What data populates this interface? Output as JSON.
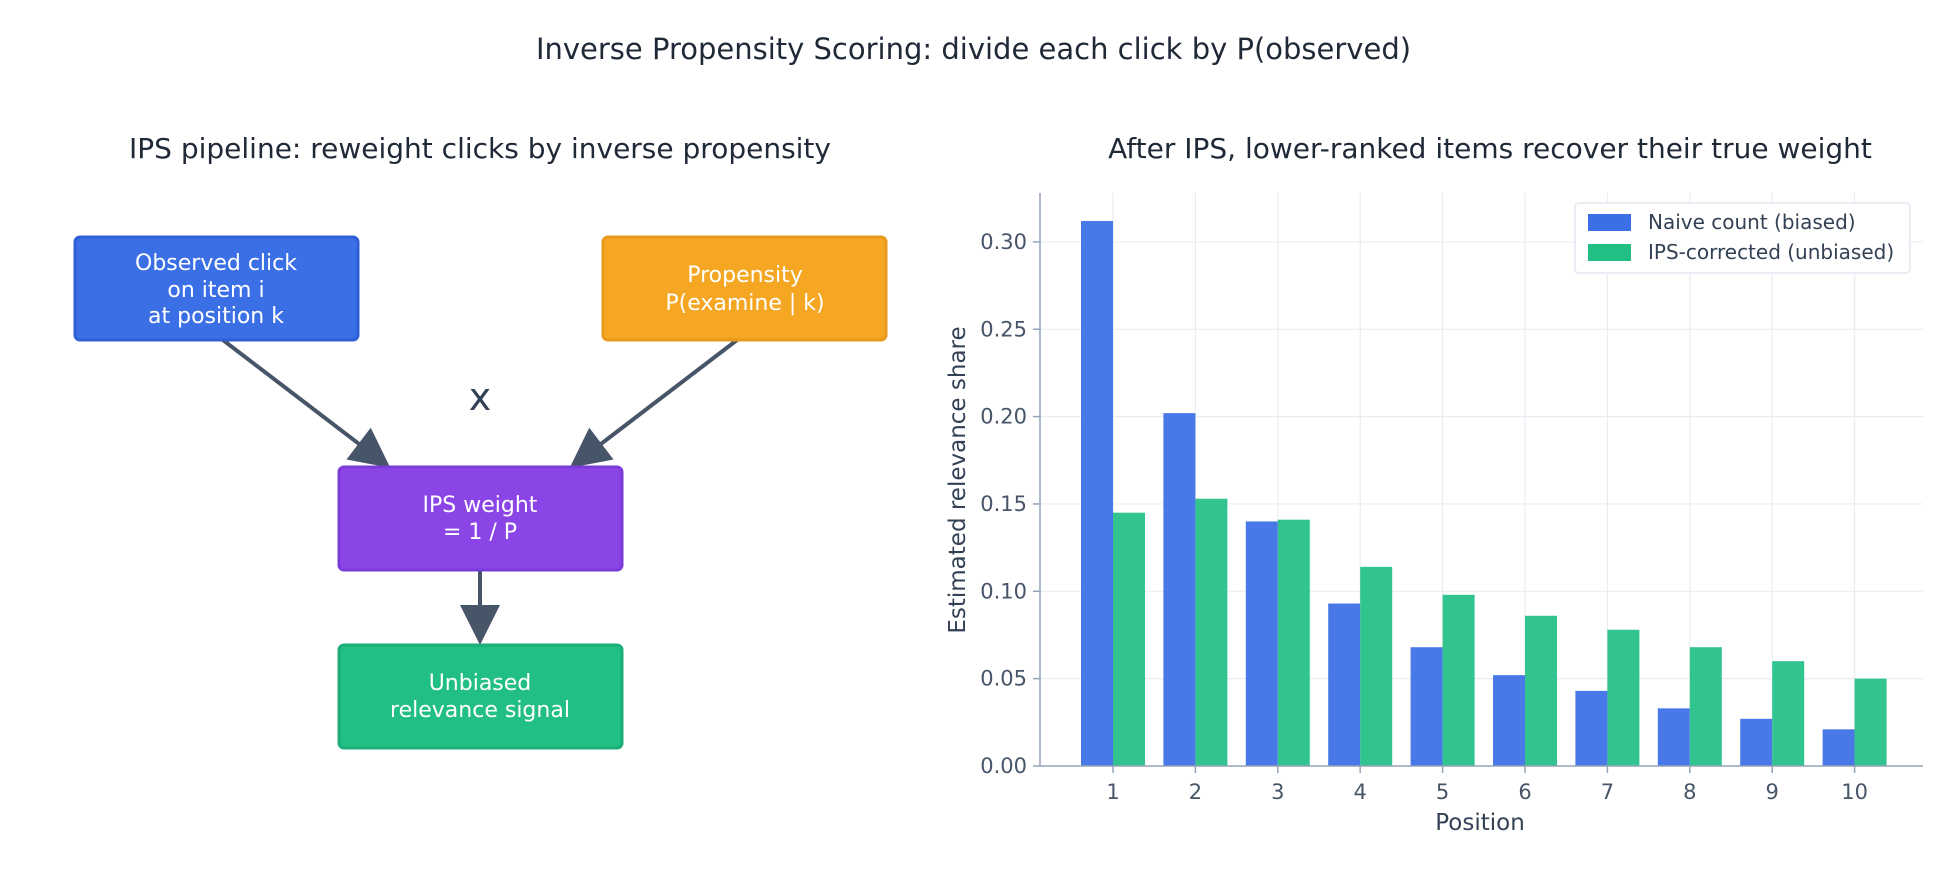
{
  "figure": {
    "title": "Inverse Propensity Scoring: divide each click by P(observed)"
  },
  "pipeline": {
    "title": "IPS pipeline: reweight clicks by inverse propensity",
    "observed_box": [
      "Observed click",
      "on item i",
      "at position k"
    ],
    "propensity_box": [
      "Propensity",
      "P(examine | k)"
    ],
    "operator": "x",
    "weight_box": [
      "IPS weight",
      "= 1 / P"
    ],
    "signal_box": [
      "Unbiased",
      "relevance signal"
    ],
    "colors": {
      "observed": "#3b6fe6",
      "propensity": "#f5a623",
      "weight": "#8b45e6",
      "signal": "#22bf85",
      "arrow": "#475569"
    }
  },
  "chart_data": {
    "type": "bar",
    "title": "After IPS, lower-ranked items recover their true weight",
    "xlabel": "Position",
    "ylabel": "Estimated relevance share",
    "categories": [
      "1",
      "2",
      "3",
      "4",
      "5",
      "6",
      "7",
      "8",
      "9",
      "10"
    ],
    "series": [
      {
        "name": "Naive count (biased)",
        "color": "#3b6fe6",
        "values": [
          0.312,
          0.202,
          0.14,
          0.093,
          0.068,
          0.052,
          0.043,
          0.033,
          0.027,
          0.021
        ]
      },
      {
        "name": "IPS-corrected (unbiased)",
        "color": "#22bf85",
        "values": [
          0.145,
          0.153,
          0.141,
          0.114,
          0.098,
          0.086,
          0.078,
          0.068,
          0.06,
          0.05
        ]
      }
    ],
    "ylim": [
      0,
      0.328
    ],
    "yticks": [
      "0.00",
      "0.05",
      "0.10",
      "0.15",
      "0.20",
      "0.25",
      "0.30"
    ],
    "grid": true,
    "legend_position": "top-right"
  }
}
